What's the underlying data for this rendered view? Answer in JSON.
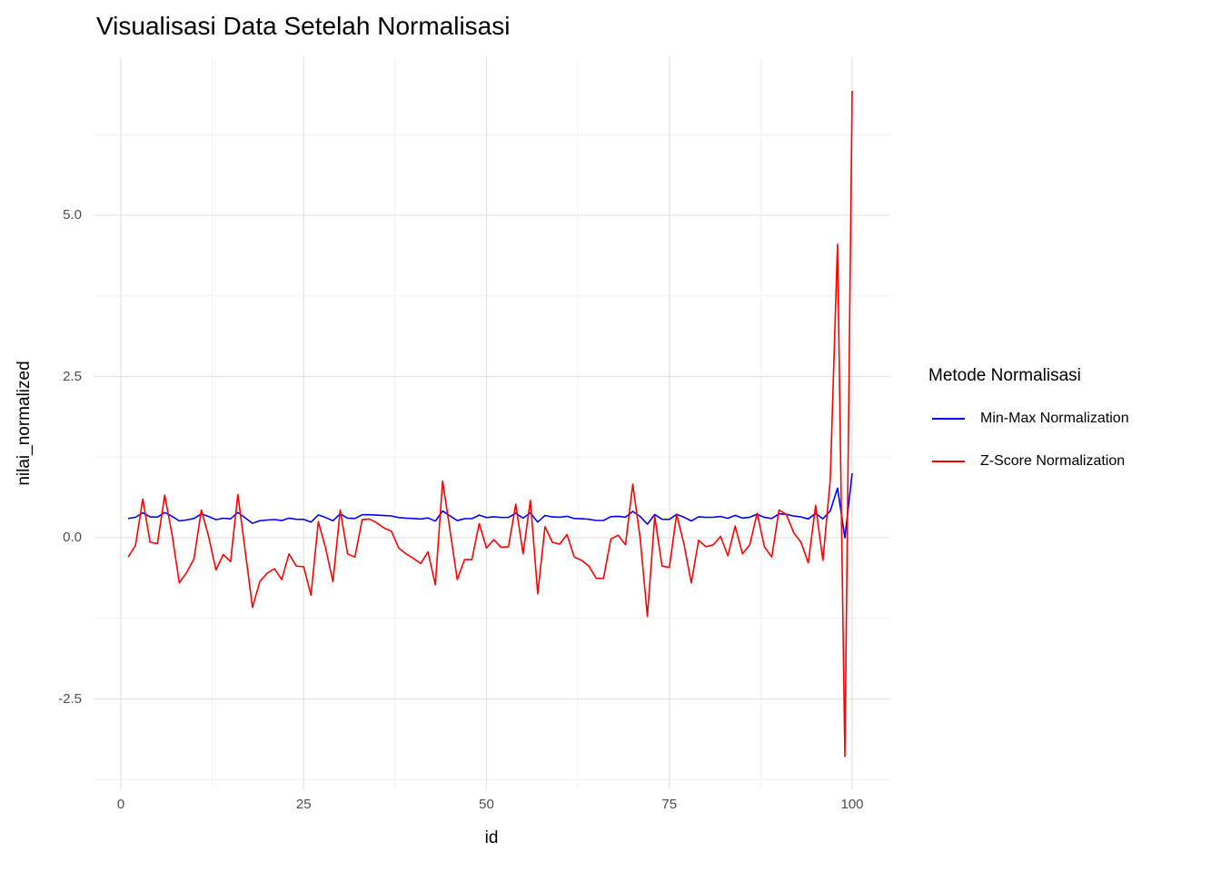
{
  "title": "Visualisasi Data Setelah Normalisasi",
  "x_axis": {
    "label": "id",
    "tick_labels": [
      "0",
      "25",
      "50",
      "75",
      "100"
    ],
    "tick_values": [
      0,
      25,
      50,
      75,
      100
    ]
  },
  "y_axis": {
    "label": "nilai_normalized",
    "tick_labels": [
      "-2.5",
      "0.0",
      "2.5",
      "5.0"
    ],
    "tick_values": [
      -2.5,
      0.0,
      2.5,
      5.0
    ]
  },
  "legend": {
    "title": "Metode Normalisasi",
    "items": [
      {
        "label": "Min-Max Normalization",
        "color": "#0000FF"
      },
      {
        "label": "Z-Score Normalization",
        "color": "#FF0000"
      }
    ]
  },
  "colors": {
    "background": "#FFFFFF",
    "grid_major": "#E4E4E4",
    "grid_minor": "#F1F1F1",
    "tick_text": "#4D4D4D",
    "text": "#000000",
    "minmax_line": "#0000FF",
    "zscore_line": "#FF0000"
  },
  "chart_data": {
    "type": "line",
    "title": "Visualisasi Data Setelah Normalisasi",
    "xlabel": "id",
    "ylabel": "nilai_normalized",
    "xlim": [
      -4,
      105
    ],
    "ylim": [
      -3.9,
      7.45
    ],
    "grid": true,
    "legend_position": "right",
    "x_major_gridlines": [
      0,
      25,
      50,
      75,
      100
    ],
    "x_minor_gridlines": [
      12.5,
      37.5,
      62.5,
      87.5
    ],
    "y_major_gridlines": [
      -2.5,
      0.0,
      2.5,
      5.0
    ],
    "y_minor_gridlines": [
      -3.75,
      -1.25,
      1.25,
      3.75,
      6.25
    ],
    "x": [
      1,
      2,
      3,
      4,
      5,
      6,
      7,
      8,
      9,
      10,
      11,
      12,
      13,
      14,
      15,
      16,
      17,
      18,
      19,
      20,
      21,
      22,
      23,
      24,
      25,
      26,
      27,
      28,
      29,
      30,
      31,
      32,
      33,
      34,
      35,
      36,
      37,
      38,
      39,
      40,
      41,
      42,
      43,
      44,
      45,
      46,
      47,
      48,
      49,
      50,
      51,
      52,
      53,
      54,
      55,
      56,
      57,
      58,
      59,
      60,
      61,
      62,
      63,
      64,
      65,
      66,
      67,
      68,
      69,
      70,
      71,
      72,
      73,
      74,
      75,
      76,
      77,
      78,
      79,
      80,
      81,
      82,
      83,
      84,
      85,
      86,
      87,
      88,
      89,
      90,
      91,
      92,
      93,
      94,
      95,
      96,
      97,
      98,
      99,
      100
    ],
    "series": [
      {
        "name": "Min-Max Normalization",
        "color": "#0000FF",
        "values": [
          0.299,
          0.317,
          0.387,
          0.322,
          0.32,
          0.392,
          0.333,
          0.261,
          0.276,
          0.297,
          0.37,
          0.33,
          0.28,
          0.303,
          0.293,
          0.393,
          0.309,
          0.224,
          0.263,
          0.275,
          0.282,
          0.266,
          0.304,
          0.286,
          0.285,
          0.242,
          0.353,
          0.313,
          0.263,
          0.37,
          0.304,
          0.299,
          0.356,
          0.357,
          0.351,
          0.343,
          0.338,
          0.313,
          0.304,
          0.298,
          0.29,
          0.307,
          0.258,
          0.414,
          0.34,
          0.266,
          0.296,
          0.296,
          0.35,
          0.313,
          0.326,
          0.314,
          0.315,
          0.379,
          0.304,
          0.385,
          0.244,
          0.345,
          0.322,
          0.319,
          0.333,
          0.299,
          0.295,
          0.286,
          0.267,
          0.267,
          0.327,
          0.332,
          0.318,
          0.409,
          0.329,
          0.21,
          0.36,
          0.286,
          0.284,
          0.363,
          0.319,
          0.261,
          0.325,
          0.315,
          0.318,
          0.33,
          0.301,
          0.346,
          0.304,
          0.318,
          0.365,
          0.315,
          0.299,
          0.37,
          0.363,
          0.336,
          0.322,
          0.291,
          0.377,
          0.295,
          0.416,
          0.769,
          0.0,
          1.0
        ]
      },
      {
        "name": "Z-Score Normalization",
        "color": "#FF0000",
        "values": [
          -0.3,
          -0.12,
          0.6,
          -0.07,
          -0.09,
          0.66,
          0.05,
          -0.7,
          -0.54,
          -0.33,
          0.43,
          0.02,
          -0.5,
          -0.26,
          -0.37,
          0.67,
          -0.2,
          -1.08,
          -0.68,
          -0.55,
          -0.48,
          -0.65,
          -0.25,
          -0.44,
          -0.45,
          -0.89,
          0.25,
          -0.16,
          -0.68,
          0.43,
          -0.25,
          -0.3,
          0.28,
          0.29,
          0.23,
          0.15,
          0.1,
          -0.16,
          -0.25,
          -0.32,
          -0.4,
          -0.22,
          -0.73,
          0.88,
          0.12,
          -0.65,
          -0.34,
          -0.34,
          0.22,
          -0.16,
          -0.03,
          -0.15,
          -0.14,
          0.52,
          -0.25,
          0.58,
          -0.87,
          0.17,
          -0.07,
          -0.1,
          0.05,
          -0.3,
          -0.35,
          -0.44,
          -0.63,
          -0.63,
          -0.02,
          0.04,
          -0.11,
          0.83,
          0.0,
          -1.22,
          0.33,
          -0.44,
          -0.46,
          0.36,
          -0.1,
          -0.7,
          -0.04,
          -0.14,
          -0.11,
          0.02,
          -0.28,
          0.18,
          -0.25,
          -0.11,
          0.38,
          -0.14,
          -0.3,
          0.43,
          0.36,
          0.08,
          -0.07,
          -0.39,
          0.5,
          -0.35,
          0.9,
          4.55,
          -3.39,
          6.93
        ]
      }
    ]
  }
}
